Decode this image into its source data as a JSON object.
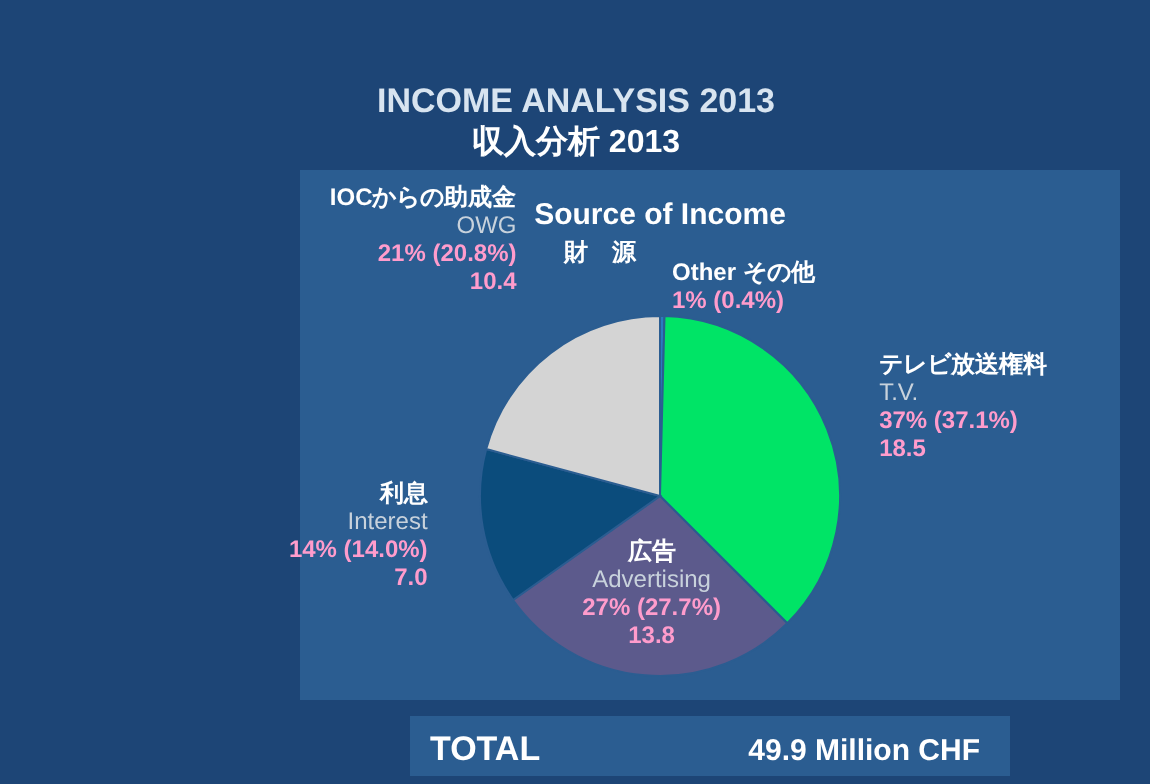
{
  "chart_data": {
    "type": "pie",
    "title": "INCOME ANALYSIS 2013",
    "subtitle": "収入分析  2013",
    "categories": [
      "Other その他",
      "テレビ放送権料\nT.V.",
      "広告\nAdvertising",
      "利息\nInterest",
      "IOCからの助成金\nOWG"
    ],
    "values": [
      0.4,
      37.1,
      27.7,
      14.0,
      20.8
    ],
    "value_labels": [
      "1% (0.4%)",
      "37% (37.1%)\n18.5",
      "27% (27.7%)\n13.8",
      "14% (14.0%)\n7.0",
      "21% (20.8%)\n10.4"
    ],
    "colors": [
      "#2b7bbf",
      "#00e466",
      "#5c5a8c",
      "#0b4c7c",
      "#d4d4d4"
    ],
    "annotations": [
      "Source of Income",
      "財　源",
      "TOTAL",
      "49.9 Million CHF"
    ]
  }
}
